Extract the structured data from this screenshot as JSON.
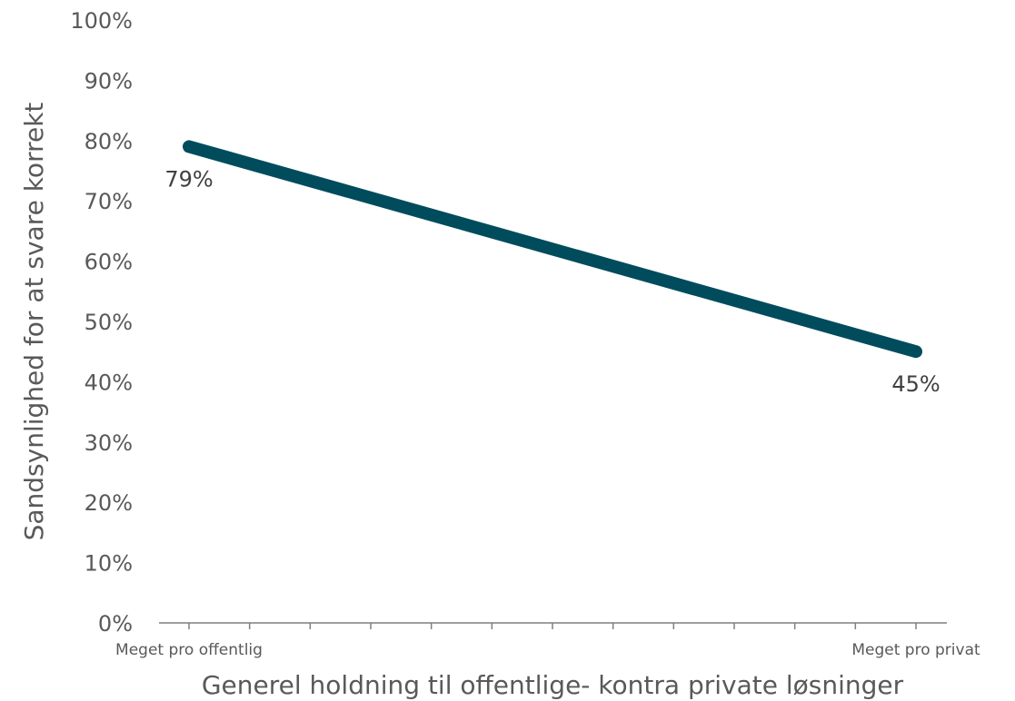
{
  "chart_data": {
    "type": "line",
    "categories": [
      "Meget pro offentlig",
      "Meget pro privat"
    ],
    "series": [
      {
        "values": [
          0.79,
          0.45
        ],
        "labels": [
          "79%",
          "45%"
        ],
        "color": "#004C5C"
      }
    ],
    "xlabel": "Generel holdning til offentlige- kontra private løsninger",
    "ylabel": "Sandsynlighed for at svare korrekt",
    "ylim": [
      0,
      1
    ],
    "yticks": [
      "0%",
      "10%",
      "20%",
      "30%",
      "40%",
      "50%",
      "60%",
      "70%",
      "80%",
      "90%",
      "100%"
    ],
    "grid": false,
    "x_minor_tick_count": 12
  }
}
